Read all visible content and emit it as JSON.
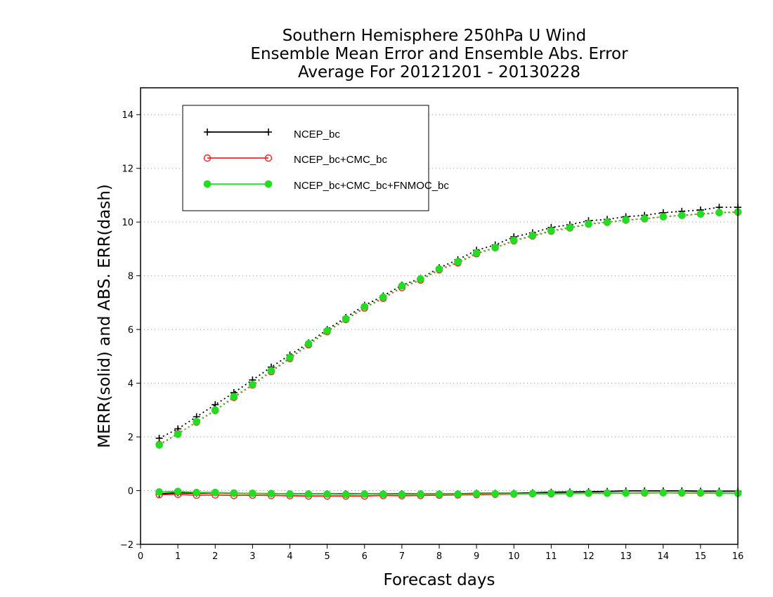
{
  "chart_data": {
    "type": "line",
    "title_lines": [
      "Southern Hemisphere 250hPa U Wind",
      "Ensemble Mean Error and Ensemble Abs. Error",
      "Average For 20121201 - 20130228"
    ],
    "xlabel": "Forecast days",
    "ylabel": "MERR(solid) and ABS. ERR(dash)",
    "xlim": [
      0,
      16
    ],
    "ylim": [
      -2,
      15
    ],
    "xticks": [
      "0",
      "1",
      "2",
      "3",
      "4",
      "5",
      "6",
      "7",
      "8",
      "9",
      "10",
      "11",
      "12",
      "13",
      "14",
      "15",
      "16"
    ],
    "yticks": [
      "−2",
      "0",
      "2",
      "4",
      "6",
      "8",
      "10",
      "12",
      "14"
    ],
    "grid": "horizontal dotted",
    "legend_position": "top-left",
    "x": [
      0.5,
      1,
      1.5,
      2,
      2.5,
      3,
      3.5,
      4,
      4.5,
      5,
      5.5,
      6,
      6.5,
      7,
      7.5,
      8,
      8.5,
      9,
      9.5,
      10,
      10.5,
      11,
      11.5,
      12,
      12.5,
      13,
      13.5,
      14,
      14.5,
      15,
      15.5,
      16
    ],
    "series": [
      {
        "name": "NCEP_bc",
        "color": "#000000",
        "marker": "plus",
        "abs_err": [
          1.95,
          2.3,
          2.75,
          3.2,
          3.65,
          4.12,
          4.6,
          5.05,
          5.5,
          6.0,
          6.45,
          6.9,
          7.25,
          7.65,
          7.9,
          8.3,
          8.6,
          8.95,
          9.15,
          9.45,
          9.6,
          9.8,
          9.9,
          10.05,
          10.1,
          10.2,
          10.25,
          10.35,
          10.4,
          10.45,
          10.55,
          10.55
        ],
        "mean_err": [
          -0.12,
          -0.08,
          -0.1,
          -0.08,
          -0.1,
          -0.1,
          -0.12,
          -0.12,
          -0.12,
          -0.12,
          -0.12,
          -0.12,
          -0.12,
          -0.12,
          -0.12,
          -0.12,
          -0.12,
          -0.1,
          -0.1,
          -0.1,
          -0.08,
          -0.06,
          -0.05,
          -0.04,
          -0.03,
          -0.01,
          -0.01,
          -0.01,
          -0.01,
          -0.02,
          -0.02,
          -0.02
        ]
      },
      {
        "name": "NCEP_bc+CMC_bc",
        "color": "#ff2020",
        "marker": "open-circle",
        "abs_err": [
          1.72,
          2.12,
          2.55,
          2.98,
          3.47,
          3.93,
          4.43,
          4.92,
          5.43,
          5.92,
          6.37,
          6.8,
          7.16,
          7.56,
          7.84,
          8.22,
          8.48,
          8.82,
          9.04,
          9.3,
          9.48,
          9.66,
          9.78,
          9.92,
          9.99,
          10.07,
          10.12,
          10.2,
          10.25,
          10.3,
          10.35,
          10.37
        ],
        "mean_err": [
          -0.15,
          -0.14,
          -0.17,
          -0.16,
          -0.18,
          -0.17,
          -0.18,
          -0.19,
          -0.2,
          -0.2,
          -0.2,
          -0.2,
          -0.18,
          -0.19,
          -0.18,
          -0.17,
          -0.16,
          -0.15,
          -0.14,
          -0.13,
          -0.12,
          -0.12,
          -0.11,
          -0.1,
          -0.1,
          -0.09,
          -0.09,
          -0.08,
          -0.09,
          -0.09,
          -0.09,
          -0.1
        ]
      },
      {
        "name": "NCEP_bc+CMC_bc+FNMOC_bc",
        "color": "#22dd22",
        "marker": "filled-circle",
        "abs_err": [
          1.7,
          2.1,
          2.57,
          3.0,
          3.5,
          3.95,
          4.47,
          4.95,
          5.47,
          5.95,
          6.4,
          6.85,
          7.2,
          7.62,
          7.88,
          8.25,
          8.52,
          8.85,
          9.05,
          9.32,
          9.5,
          9.68,
          9.8,
          9.93,
          10.0,
          10.08,
          10.13,
          10.2,
          10.25,
          10.3,
          10.35,
          10.38
        ],
        "mean_err": [
          -0.05,
          -0.03,
          -0.07,
          -0.07,
          -0.09,
          -0.1,
          -0.11,
          -0.13,
          -0.13,
          -0.13,
          -0.14,
          -0.13,
          -0.13,
          -0.14,
          -0.13,
          -0.13,
          -0.13,
          -0.12,
          -0.12,
          -0.12,
          -0.11,
          -0.1,
          -0.1,
          -0.09,
          -0.09,
          -0.09,
          -0.08,
          -0.08,
          -0.08,
          -0.08,
          -0.09,
          -0.1
        ]
      }
    ]
  }
}
